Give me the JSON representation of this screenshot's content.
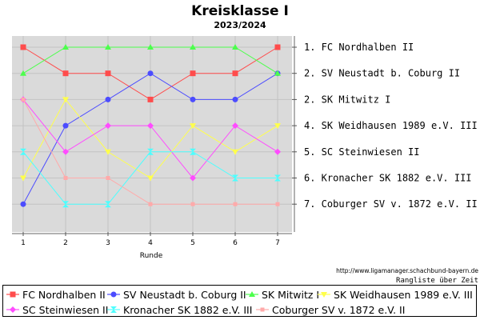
{
  "title": "Kreisklasse I",
  "subtitle": "2023/2024",
  "source_url": "http://www.ligamanager.schachbund-bayern.de",
  "caption": "Rangliste über Zeit",
  "chart_data": {
    "type": "line",
    "xlabel": "Runde",
    "ylabel": "",
    "x": [
      1,
      2,
      3,
      4,
      5,
      6,
      7
    ],
    "ylim": [
      1,
      7
    ],
    "y_inverted": true,
    "grid": true,
    "legend": "bottom",
    "final_ranking": [
      {
        "rank": "1.",
        "team": "FC Nordhalben II"
      },
      {
        "rank": "2.",
        "team": "SV Neustadt b. Coburg II"
      },
      {
        "rank": "2.",
        "team": "SK Mitwitz I"
      },
      {
        "rank": "4.",
        "team": "SK Weidhausen 1989 e.V. III"
      },
      {
        "rank": "5.",
        "team": "SC Steinwiesen II"
      },
      {
        "rank": "6.",
        "team": "Kronacher SK 1882 e.V. III"
      },
      {
        "rank": "7.",
        "team": "Coburger SV v. 1872 e.V. II"
      }
    ],
    "series": [
      {
        "name": "FC Nordhalben II",
        "color": "#ff4c4c",
        "marker": "square",
        "values": [
          1,
          2,
          2,
          3,
          2,
          2,
          1
        ]
      },
      {
        "name": "SV Neustadt b. Coburg II",
        "color": "#4c4cff",
        "marker": "circle",
        "values": [
          7,
          4,
          3,
          2,
          3,
          3,
          2
        ]
      },
      {
        "name": "SK Mitwitz I",
        "color": "#4cff4c",
        "marker": "triangle-up",
        "values": [
          2,
          1,
          1,
          1,
          1,
          1,
          2
        ]
      },
      {
        "name": "SK Weidhausen 1989 e.V. III",
        "color": "#ffff4c",
        "marker": "triangle-down",
        "values": [
          6,
          3,
          5,
          6,
          4,
          5,
          4
        ]
      },
      {
        "name": "SC Steinwiesen II",
        "color": "#ff4cff",
        "marker": "diamond",
        "values": [
          3,
          5,
          4,
          4,
          6,
          4,
          5
        ]
      },
      {
        "name": "Kronacher SK 1882 e.V. III",
        "color": "#4cffff",
        "marker": "hourglass",
        "values": [
          5,
          7,
          7,
          5,
          5,
          6,
          6
        ]
      },
      {
        "name": "Coburger SV v. 1872 e.V. II",
        "color": "#ffaaaa",
        "marker": "small-square",
        "values": [
          3,
          6,
          6,
          7,
          7,
          7,
          7
        ]
      }
    ]
  }
}
